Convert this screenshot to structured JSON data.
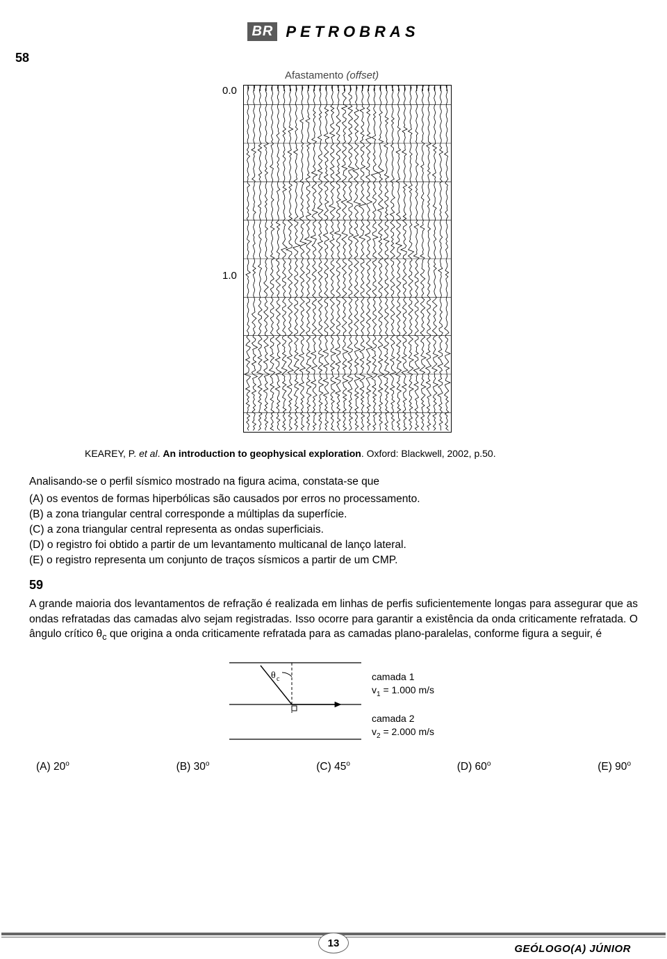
{
  "header": {
    "brand_short": "BR",
    "brand_full": "PETROBRAS"
  },
  "q58": {
    "number": "58",
    "fig": {
      "title_plain": "Afastamento ",
      "title_italic": "(offset)",
      "y_tick_top": "0.0",
      "y_tick_mid": "1.0",
      "trace_count": 34,
      "hline_count": 9,
      "background": "#ffffff",
      "line_color": "#000000"
    },
    "citation_prefix": "KEAREY, P. ",
    "citation_italic_1": "et al",
    "citation_mid": ". ",
    "citation_bold": "An introduction to geophysical exploration",
    "citation_suffix": ". Oxford: Blackwell, 2002, p.50.",
    "stem": "Analisando-se o perfil sísmico mostrado na figura acima, constata-se que",
    "opts": {
      "A": "(A) os eventos de formas hiperbólicas são causados por erros no processamento.",
      "B": "(B) a zona triangular central corresponde a múltiplas da superfície.",
      "C": "(C) a zona triangular central representa as ondas superficiais.",
      "D": "(D) o registro foi obtido a partir de um levantamento multicanal de lanço lateral.",
      "E": "(E) o registro representa um conjunto de traços sísmicos a partir de um CMP."
    }
  },
  "q59": {
    "number": "59",
    "stem": "A grande maioria dos levantamentos de refração é realizada em linhas de perfis suficientemente longas para assegurar que as ondas refratadas das camadas alvo sejam registradas. Isso ocorre para garantir a existência da onda criticamente refratada. O ângulo crítico θ",
    "stem_sub": "c",
    "stem_tail": " que origina a onda criticamente refratada para as camadas plano-paralelas, conforme figura a seguir, é",
    "fig": {
      "theta_label": "θ",
      "theta_sub": "c",
      "layer1_label": "camada 1",
      "layer1_v_label": "v",
      "layer1_v_sub": "1",
      "layer1_v_val": " = 1.000 m/s",
      "layer2_label": "camada 2",
      "layer2_v_label": "v",
      "layer2_v_sub": "2",
      "layer2_v_val": " = 2.000 m/s",
      "line_color": "#000000"
    },
    "opts": {
      "A": "(A) 20",
      "B": "(B) 30",
      "C": "(C) 45",
      "D": "(D) 60",
      "E": "(E) 90",
      "deg": "o"
    }
  },
  "footer": {
    "page": "13",
    "role": "GEÓLOGO(A) JÚNIOR"
  }
}
